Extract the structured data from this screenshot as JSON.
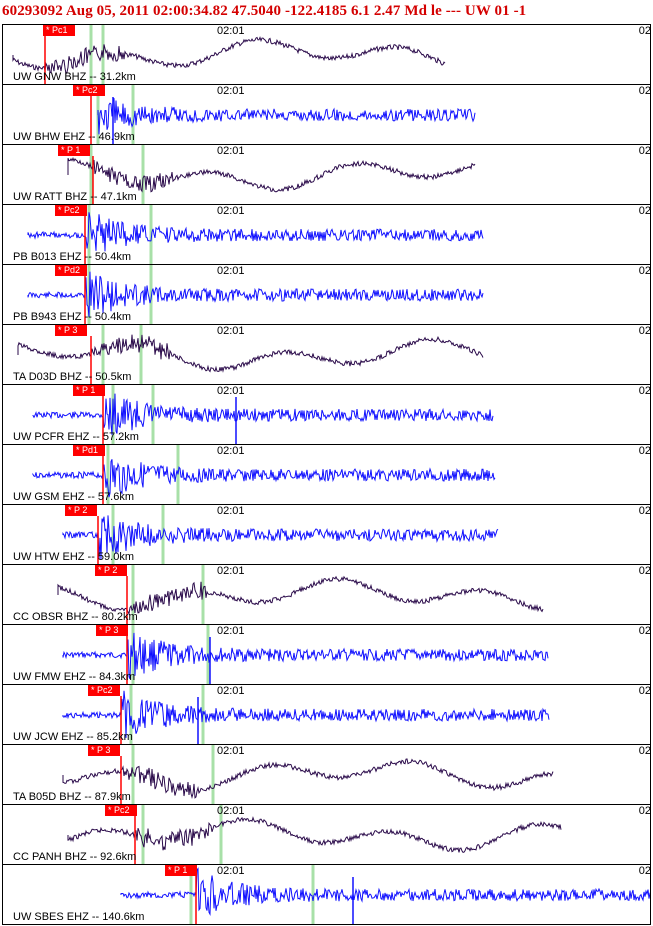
{
  "header": {
    "text": "60293092  Aug 05, 2011 02:00:34.82   47.5040 -122.4185  6.1 2.47 Md le ---  UW 01  -1"
  },
  "colors": {
    "header_red": "#d40000",
    "trace_blue": "#1010ff",
    "trace_purple": "#2a0a4a",
    "pick_red": "#ff0000",
    "phase_green": "#a8e0a8"
  },
  "time_tick_label": "02:01",
  "time_tick_label_right": "02:",
  "panels": [
    {
      "station": "UW GNW BHZ -- 31.2km",
      "pick": "* Pc1",
      "trace": "purple"
    },
    {
      "station": "UW BHW EHZ -- 46.9km",
      "pick": "* Pc2",
      "trace": "blue"
    },
    {
      "station": "UW RATT BHZ -- 47.1km",
      "pick": "* P 1",
      "trace": "purple"
    },
    {
      "station": "PB B013 EHZ -- 50.4km",
      "pick": "* Pc2",
      "trace": "blue"
    },
    {
      "station": "PB B943 EHZ -- 50.4km",
      "pick": "* Pd2",
      "trace": "blue"
    },
    {
      "station": "TA D03D BHZ -- 50.5km",
      "pick": "* P 3",
      "trace": "purple"
    },
    {
      "station": "UW PCFR EHZ -- 57.2km",
      "pick": "* P 1",
      "trace": "blue"
    },
    {
      "station": "UW GSM EHZ -- 57.6km",
      "pick": "* Pd1",
      "trace": "blue"
    },
    {
      "station": "UW HTW EHZ -- 59.0km",
      "pick": "* P 2",
      "trace": "blue"
    },
    {
      "station": "CC OBSR BHZ -- 80.2km",
      "pick": "* P 2",
      "trace": "purple"
    },
    {
      "station": "UW FMW EHZ -- 84.3km",
      "pick": "* P 3",
      "trace": "blue"
    },
    {
      "station": "UW JCW EHZ -- 85.2km",
      "pick": "* Pc2",
      "trace": "blue"
    },
    {
      "station": "TA B05D BHZ -- 87.9km",
      "pick": "* P 3",
      "trace": "purple"
    },
    {
      "station": "CC PANH BHZ -- 92.6km",
      "pick": "* Pc2",
      "trace": "purple"
    },
    {
      "station": "UW SBES EHZ -- 140.6km",
      "pick": "* P 1",
      "trace": "blue"
    }
  ]
}
